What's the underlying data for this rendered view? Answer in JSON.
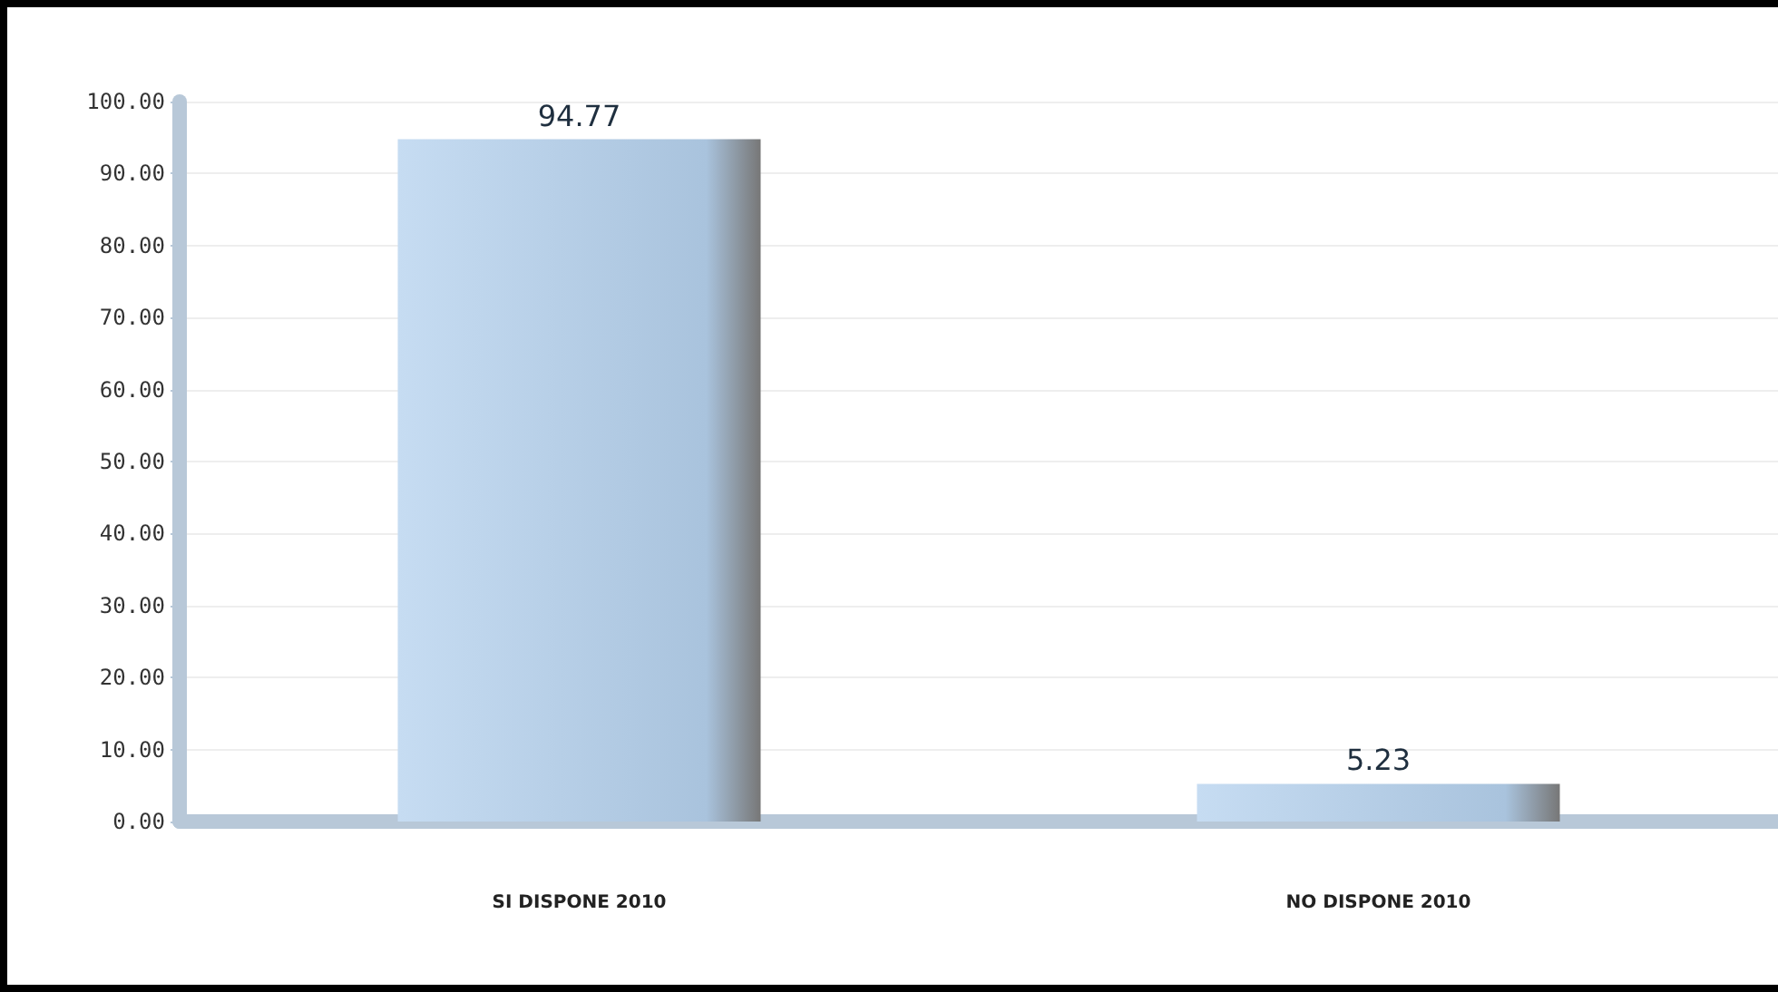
{
  "chart_data": {
    "type": "bar",
    "categories": [
      "SI DISPONE 2010",
      "NO DISPONE 2010"
    ],
    "values": [
      94.77,
      5.23
    ],
    "color": "#a9c3dd",
    "data_labels": true,
    "ylim": [
      0,
      100
    ],
    "yticks": [
      {
        "value": 0,
        "label": "0.00"
      },
      {
        "value": 10,
        "label": "10.00"
      },
      {
        "value": 20,
        "label": "20.00"
      },
      {
        "value": 30,
        "label": "30.00"
      },
      {
        "value": 40,
        "label": "40.00"
      },
      {
        "value": 50,
        "label": "50.00"
      },
      {
        "value": 60,
        "label": "60.00"
      },
      {
        "value": 70,
        "label": "70.00"
      },
      {
        "value": 80,
        "label": "80.00"
      },
      {
        "value": 90,
        "label": "90.00"
      },
      {
        "value": 100,
        "label": "100.00"
      }
    ],
    "grid": "y"
  }
}
